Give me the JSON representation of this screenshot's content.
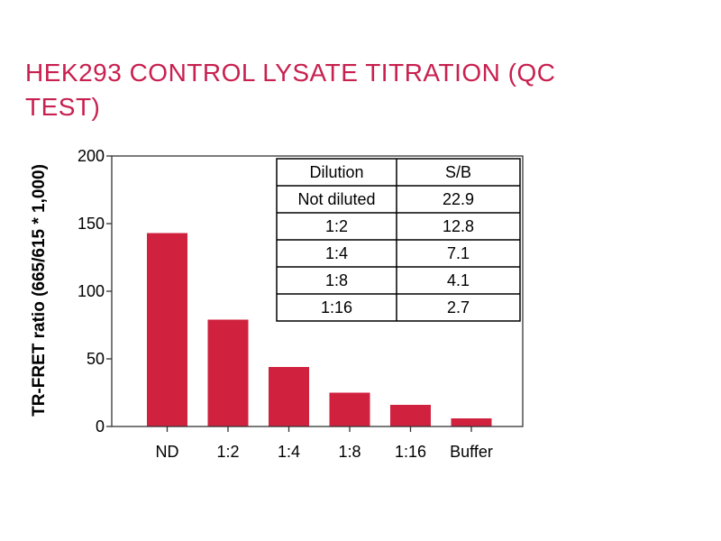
{
  "chart_data": {
    "type": "bar",
    "title": "HEK293 CONTROL LYSATE TITRATION (QC TEST)",
    "xlabel": "",
    "ylabel": "TR-FRET ratio (665/615 * 1,000)",
    "categories": [
      "ND",
      "1:2",
      "1:4",
      "1:8",
      "1:16",
      "Buffer"
    ],
    "values": [
      143,
      79,
      44,
      25,
      16,
      6
    ],
    "ylim": [
      0,
      200
    ],
    "yticks": [
      0,
      50,
      100,
      150,
      200
    ],
    "grid": false,
    "bar_color": "#d0213f",
    "title_color": "#c8204f",
    "table": {
      "headers": [
        "Dilution",
        "S/B"
      ],
      "rows": [
        [
          "Not diluted",
          "22.9"
        ],
        [
          "1:2",
          "12.8"
        ],
        [
          "1:4",
          "7.1"
        ],
        [
          "1:8",
          "4.1"
        ],
        [
          "1:16",
          "2.7"
        ]
      ]
    }
  }
}
